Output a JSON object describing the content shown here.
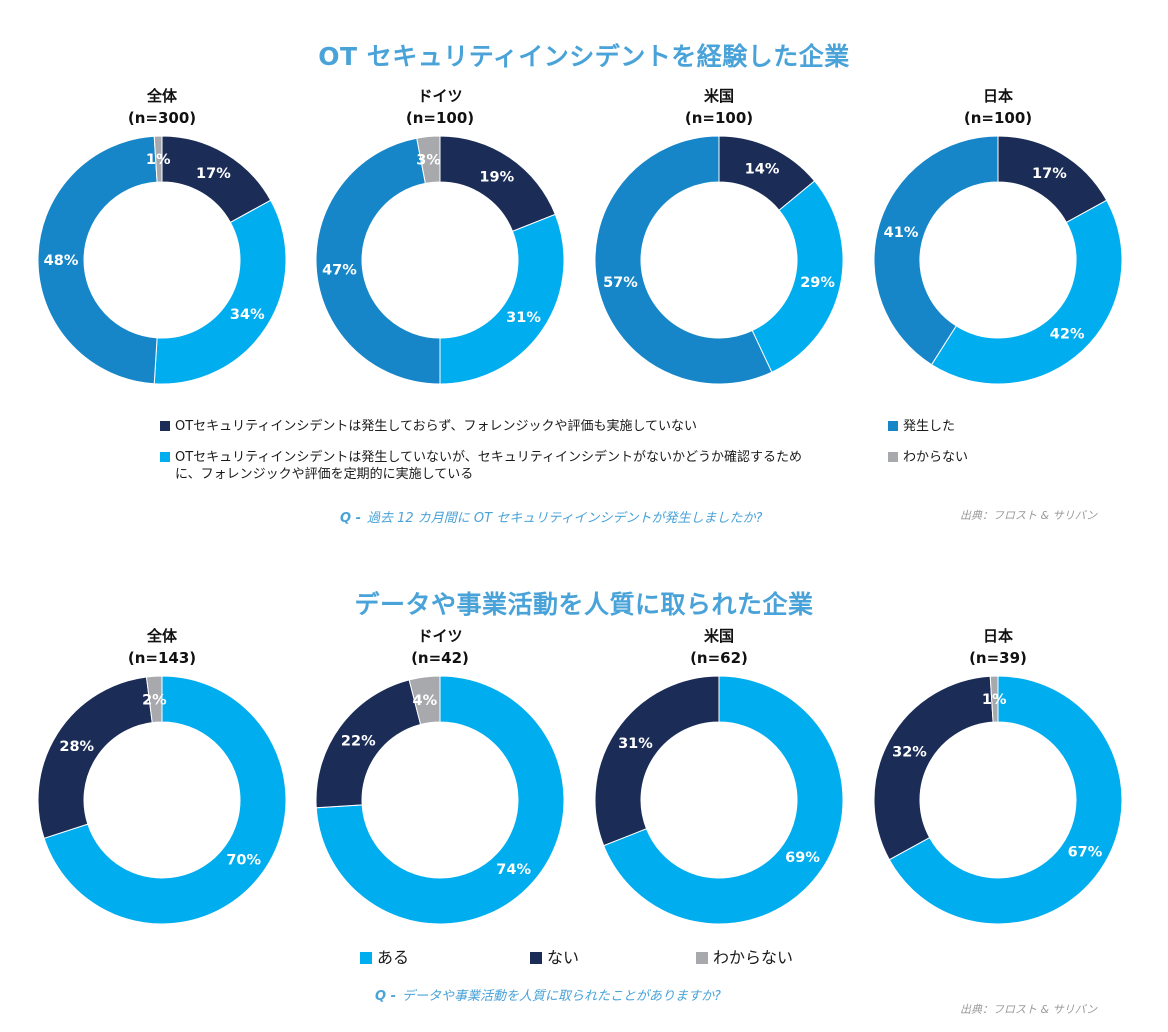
{
  "colors": {
    "title": "#4aa3d8",
    "dark_navy": "#1b2d57",
    "bright_blue": "#00adef",
    "mid_blue": "#1686c9",
    "gray": "#a7a9ac"
  },
  "section1": {
    "title": "OT セキュリティインシデントを経験した企業",
    "question_prefix": "Q -",
    "question": "過去 12 カ月間に OT セキュリティインシデントが発生しましたか?",
    "source": "出典：フロスト & サリバン",
    "legend": [
      {
        "label": "OTセキュリティインシデントは発生しておらず、フォレンジックや評価も実施していない",
        "color": "#1b2d57"
      },
      {
        "label": "OTセキュリティインシデントは発生していないが、セキュリティインシデントがないかどうか確認するために、フォレンジックや評価を定期的に実施している",
        "color": "#00adef"
      },
      {
        "label": "発生した",
        "color": "#1686c9"
      },
      {
        "label": "わからない",
        "color": "#a7a9ac"
      }
    ]
  },
  "section2": {
    "title": "データや事業活動を人質に取られた企業",
    "question_prefix": "Q -",
    "question": "データや事業活動を人質に取られたことがありますか?",
    "source": "出典：フロスト & サリバン",
    "legend": [
      {
        "label": "ある",
        "color": "#00adef"
      },
      {
        "label": "ない",
        "color": "#1b2d57"
      },
      {
        "label": "わからない",
        "color": "#a7a9ac"
      }
    ]
  },
  "chart_data": [
    {
      "type": "pie",
      "chart": "section1",
      "title": "全体",
      "subtitle": "(n=300)",
      "slices": [
        {
          "legend": "not_occurred_no_forensics",
          "value": 17,
          "label": "17%",
          "color": "#1b2d57"
        },
        {
          "legend": "not_occurred_regular_forensics",
          "value": 34,
          "label": "34%",
          "color": "#00adef"
        },
        {
          "legend": "occurred",
          "value": 48,
          "label": "48%",
          "color": "#1686c9"
        },
        {
          "legend": "unknown",
          "value": 1,
          "label": "1%",
          "color": "#a7a9ac"
        }
      ]
    },
    {
      "type": "pie",
      "chart": "section1",
      "title": "ドイツ",
      "subtitle": "(n=100)",
      "slices": [
        {
          "legend": "not_occurred_no_forensics",
          "value": 19,
          "label": "19%",
          "color": "#1b2d57"
        },
        {
          "legend": "not_occurred_regular_forensics",
          "value": 31,
          "label": "31%",
          "color": "#00adef"
        },
        {
          "legend": "occurred",
          "value": 47,
          "label": "47%",
          "color": "#1686c9"
        },
        {
          "legend": "unknown",
          "value": 3,
          "label": "3%",
          "color": "#a7a9ac"
        }
      ]
    },
    {
      "type": "pie",
      "chart": "section1",
      "title": "米国",
      "subtitle": "(n=100)",
      "slices": [
        {
          "legend": "not_occurred_no_forensics",
          "value": 14,
          "label": "14%",
          "color": "#1b2d57"
        },
        {
          "legend": "not_occurred_regular_forensics",
          "value": 29,
          "label": "29%",
          "color": "#00adef"
        },
        {
          "legend": "occurred",
          "value": 57,
          "label": "57%",
          "color": "#1686c9"
        }
      ]
    },
    {
      "type": "pie",
      "chart": "section1",
      "title": "日本",
      "subtitle": "(n=100)",
      "slices": [
        {
          "legend": "not_occurred_no_forensics",
          "value": 17,
          "label": "17%",
          "color": "#1b2d57"
        },
        {
          "legend": "not_occurred_regular_forensics",
          "value": 42,
          "label": "42%",
          "color": "#00adef"
        },
        {
          "legend": "occurred",
          "value": 41,
          "label": "41%",
          "color": "#1686c9"
        }
      ]
    },
    {
      "type": "pie",
      "chart": "section2",
      "title": "全体",
      "subtitle": "(n=143)",
      "slices": [
        {
          "legend": "yes",
          "value": 70,
          "label": "70%",
          "color": "#00adef"
        },
        {
          "legend": "no",
          "value": 28,
          "label": "28%",
          "color": "#1b2d57"
        },
        {
          "legend": "unknown",
          "value": 2,
          "label": "2%",
          "color": "#a7a9ac"
        }
      ]
    },
    {
      "type": "pie",
      "chart": "section2",
      "title": "ドイツ",
      "subtitle": "(n=42)",
      "slices": [
        {
          "legend": "yes",
          "value": 74,
          "label": "74%",
          "color": "#00adef"
        },
        {
          "legend": "no",
          "value": 22,
          "label": "22%",
          "color": "#1b2d57"
        },
        {
          "legend": "unknown",
          "value": 4,
          "label": "4%",
          "color": "#a7a9ac"
        }
      ]
    },
    {
      "type": "pie",
      "chart": "section2",
      "title": "米国",
      "subtitle": "(n=62)",
      "slices": [
        {
          "legend": "yes",
          "value": 69,
          "label": "69%",
          "color": "#00adef"
        },
        {
          "legend": "no",
          "value": 31,
          "label": "31%",
          "color": "#1b2d57"
        }
      ]
    },
    {
      "type": "pie",
      "chart": "section2",
      "title": "日本",
      "subtitle": "(n=39)",
      "slices": [
        {
          "legend": "yes",
          "value": 67,
          "label": "67%",
          "color": "#00adef"
        },
        {
          "legend": "no",
          "value": 32,
          "label": "32%",
          "color": "#1b2d57"
        },
        {
          "legend": "unknown",
          "value": 1,
          "label": "1%",
          "color": "#a7a9ac"
        }
      ]
    }
  ]
}
